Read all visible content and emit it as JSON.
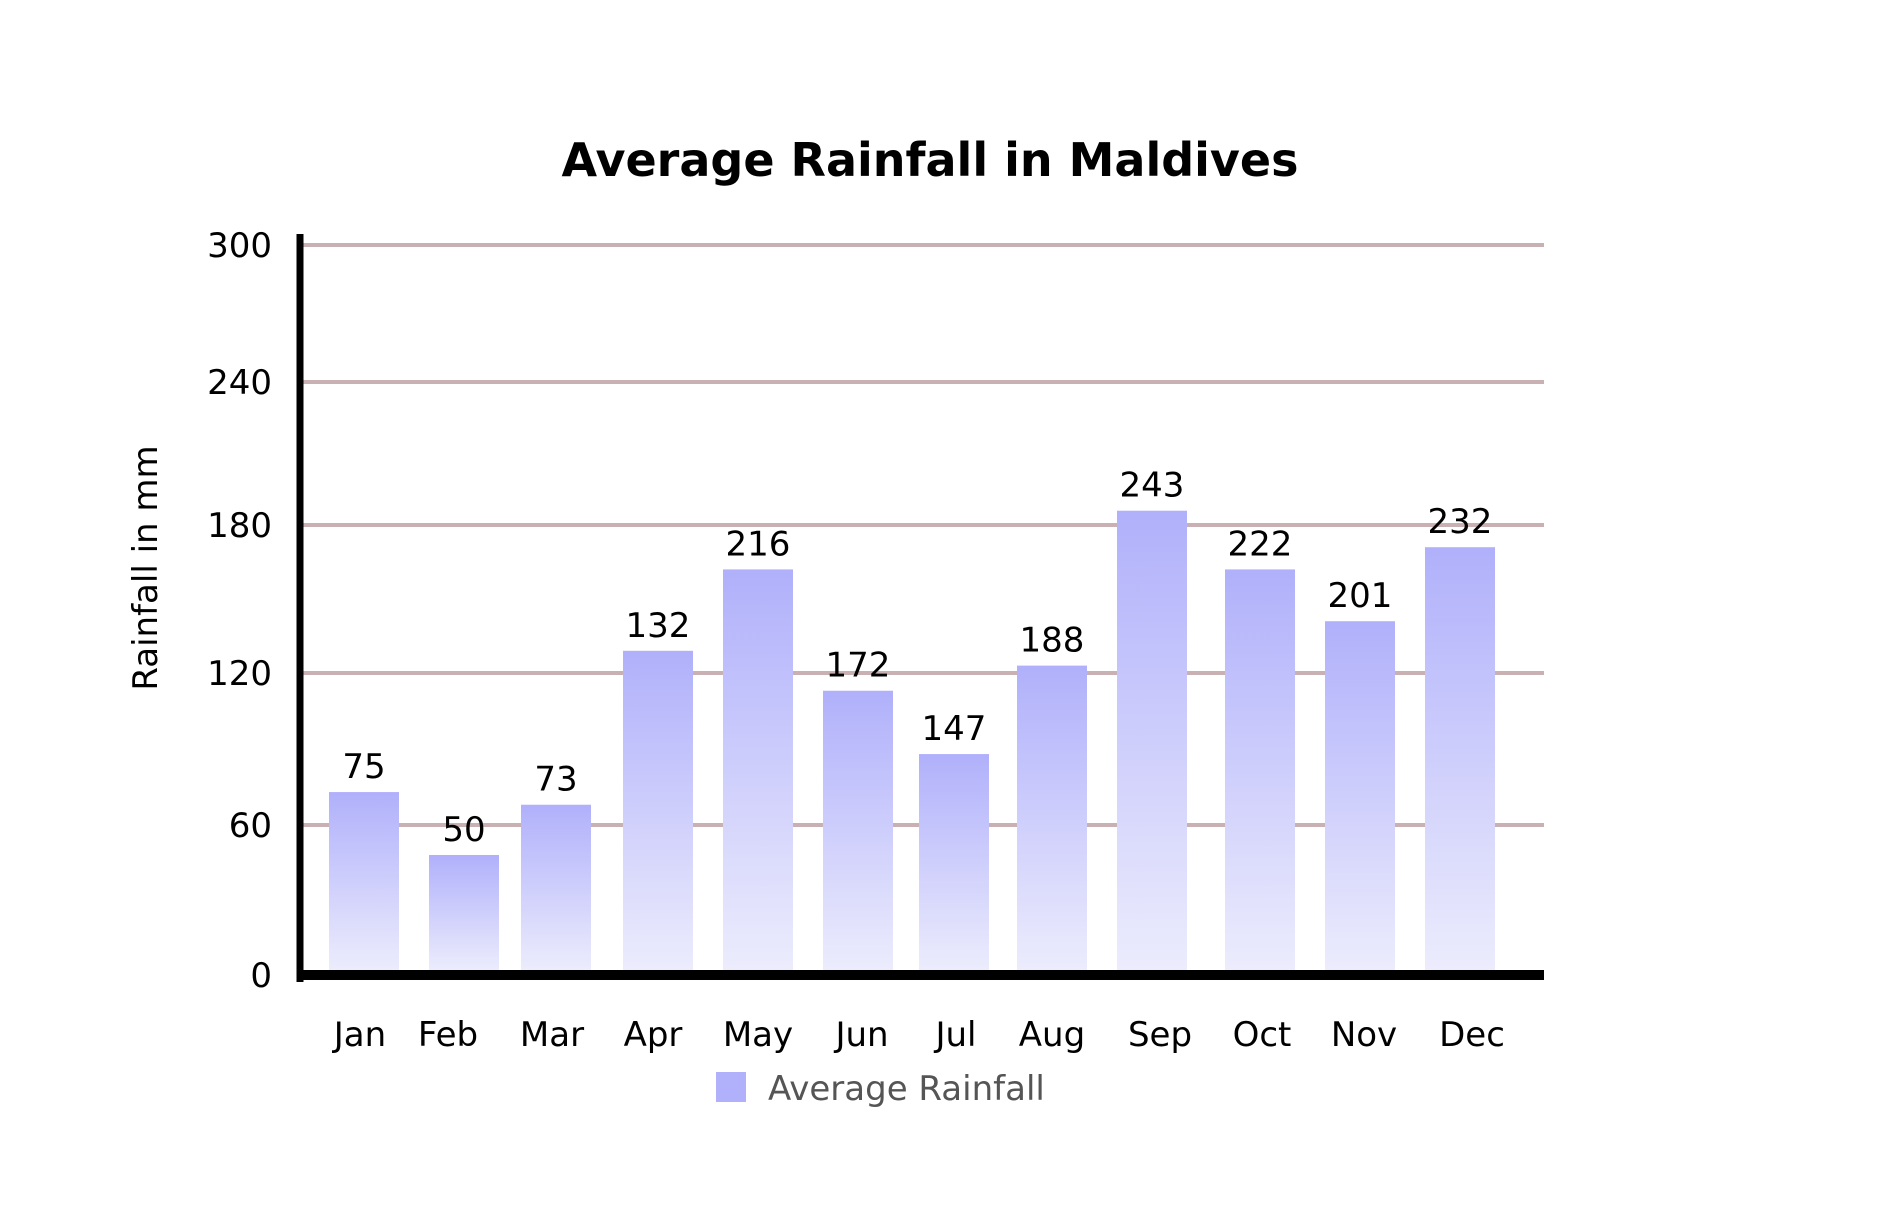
{
  "chart_data": {
    "type": "bar",
    "title": "Average Rainfall in Maldives",
    "ylabel": "Rainfall in mm",
    "xlabel": "",
    "categories": [
      "Jan",
      "Feb",
      "Mar",
      "Apr",
      "May",
      "Jun",
      "Jul",
      "Aug",
      "Sep",
      "Oct",
      "Nov",
      "Dec"
    ],
    "series": [
      {
        "name": "Average Rainfall",
        "values": [
          75,
          50,
          73,
          132,
          216,
          172,
          147,
          188,
          243,
          222,
          201,
          232
        ],
        "color": "#b0b0fb"
      }
    ],
    "bar_heights_axis": [
      73,
      48,
      68,
      129,
      162,
      113,
      88,
      123,
      186,
      162,
      141,
      171
    ],
    "yticks": [
      0,
      60,
      120,
      180,
      240,
      300
    ],
    "ylim": [
      0,
      300
    ],
    "grid": true,
    "gridline_color": "#c9b1b3",
    "legend_position": "bottom"
  }
}
